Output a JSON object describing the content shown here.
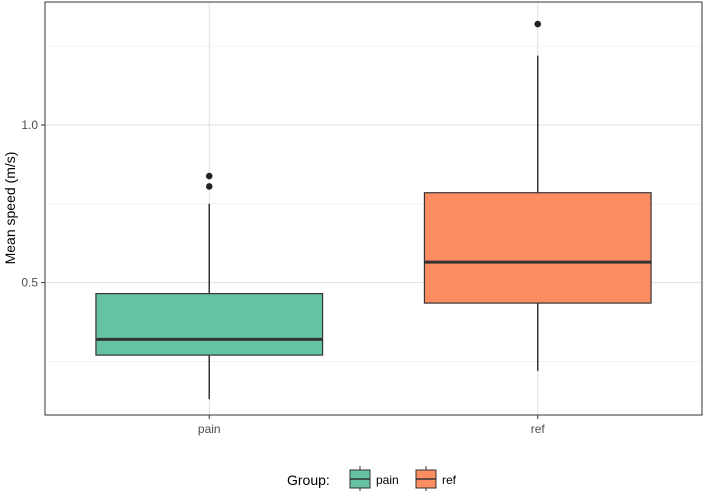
{
  "chart_data": {
    "type": "box",
    "title": "",
    "xlabel": "",
    "ylabel": "Mean speed (m/s)",
    "ylim": [
      0.08,
      1.39
    ],
    "y_ticks": [
      0.5,
      1.0
    ],
    "y_tick_labels": [
      "0.5",
      "1.0"
    ],
    "y_minor_ticks": [
      0.25,
      0.75,
      1.25
    ],
    "categories": [
      "pain",
      "ref"
    ],
    "grid": true,
    "legend_position": "bottom",
    "legend_title": "Group:",
    "series": [
      {
        "name": "pain",
        "color": "#66C2A5",
        "min": 0.13,
        "q1": 0.27,
        "median": 0.32,
        "q3": 0.465,
        "max": 0.75,
        "outliers": [
          0.805,
          0.838
        ]
      },
      {
        "name": "ref",
        "color": "#FC8D62",
        "min": 0.22,
        "q1": 0.435,
        "median": 0.565,
        "q3": 0.785,
        "max": 1.22,
        "outliers": [
          1.32
        ]
      }
    ]
  }
}
